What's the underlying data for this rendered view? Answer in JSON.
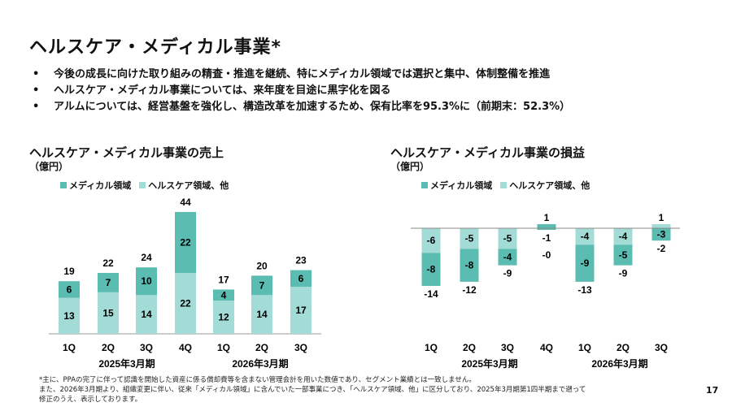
{
  "title": "ヘルスケア・メディカル事業*",
  "bullets": [
    "今後の成長に向けた取り組みの精査・推進を継続、特にメディカル領域では選択と集中、体制整備を推進",
    "ヘルスケア・メディカル事業については、来年度を目途に黒字化を図る",
    "アルムについては、経営基盤を強化し、構造改革を加速するため、保有比率を95.3%に（前期末：52.3%）"
  ],
  "colors": {
    "medical": "#5bbcb1",
    "healthcare": "#a3dcd7"
  },
  "legend": {
    "medical": "メディカル領域",
    "healthcare": "ヘルスケア領域、他"
  },
  "chart_data": [
    {
      "type": "bar",
      "stacked": true,
      "title": "ヘルスケア・メディカル事業の売上",
      "unit": "（億円）",
      "categories": [
        "1Q",
        "2Q",
        "3Q",
        "4Q",
        "1Q",
        "2Q",
        "3Q"
      ],
      "groups": [
        "2025年3月期",
        "2026年3月期"
      ],
      "series": [
        {
          "name": "ヘルスケア領域、他",
          "values": [
            13,
            15,
            14,
            22,
            12,
            14,
            17
          ]
        },
        {
          "name": "メディカル領域",
          "values": [
            6,
            7,
            10,
            22,
            4,
            7,
            6
          ]
        }
      ],
      "totals": [
        "19",
        "22",
        "24",
        "44",
        "17",
        "20",
        "23"
      ]
    },
    {
      "type": "bar",
      "stacked": true,
      "title": "ヘルスケア・メディカル事業の損益",
      "unit": "（億円）",
      "categories": [
        "1Q",
        "2Q",
        "3Q",
        "4Q",
        "1Q",
        "2Q",
        "3Q"
      ],
      "groups": [
        "2025年3月期",
        "2026年3月期"
      ],
      "series": [
        {
          "name": "ヘルスケア領域、他",
          "values": [
            -6,
            -5,
            -5,
            1,
            -4,
            -4,
            1
          ]
        },
        {
          "name": "メディカル領域",
          "values": [
            -8,
            -8,
            -4,
            -1,
            -9,
            -5,
            -3
          ]
        }
      ],
      "totals": [
        "-14",
        "-12",
        "-9",
        "-0",
        "-13",
        "-9",
        "-2"
      ]
    }
  ],
  "footnote": [
    "*主に、PPAの完了に伴って認識を開始した資産に係る償却費等を含まない管理会計を用いた数値であり、セグメント業績とは一致しません。",
    "また、2026年3月期より、組織変更に伴い、従来「メディカル領域」に含んでいた一部事業につき、「ヘルスケア領域、他」に区分しており、2025年3月期第1四半期まで遡って",
    "修正のうえ、表示しております。"
  ],
  "page": "17"
}
